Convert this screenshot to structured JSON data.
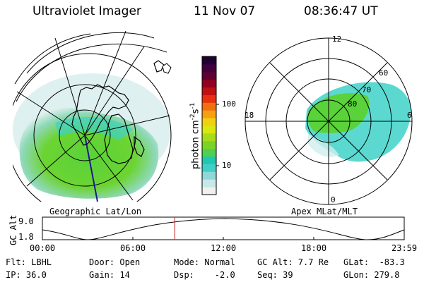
{
  "header": {
    "instrument": "Ultraviolet Imager",
    "date": "11 Nov 07",
    "time": "08:36:47 UT"
  },
  "left_map": {
    "caption": "Geographic Lat/Lon"
  },
  "right_map": {
    "caption": "Apex MLat/MLT",
    "mlt_labels": [
      "12",
      "18",
      "6",
      "0"
    ],
    "mlat_labels": [
      "60",
      "70",
      "80"
    ]
  },
  "colorbar": {
    "unit_label": "photon cm",
    "unit_exp1": "-2",
    "unit_mid": "s",
    "unit_exp2": "-1",
    "tick_labels": [
      "100",
      "10"
    ],
    "colors": [
      "#f0f0f0",
      "#c8e8e8",
      "#8ed8d8",
      "#40d0c8",
      "#20c8b0",
      "#50d050",
      "#7ad428",
      "#a8dc18",
      "#d8e810",
      "#f0d010",
      "#f4a010",
      "#f07010",
      "#e83010",
      "#c01010",
      "#900020",
      "#600030",
      "#400040",
      "#200030"
    ]
  },
  "altitude_panel": {
    "ylabel": "GC Alt",
    "y_ticks": [
      "9.0",
      "1.8"
    ],
    "x_ticks": [
      "00:00",
      "06:00",
      "12:00",
      "18:00",
      "23:59"
    ],
    "current_time_fraction": 0.3658
  },
  "info": {
    "flt": "Flt: LBHL",
    "ip": "IP: 36.0",
    "door": "Door: Open",
    "gain": "Gain: 14",
    "mode": "Mode: Normal",
    "dsp": "Dsp:    -2.0",
    "gcalt": "GC Alt: 7.7 Re",
    "seq": "Seq: 39",
    "glat": "GLat:  -83.3",
    "glon": "GLon: 279.8"
  },
  "colors": {
    "aurora_green": "#5ad23a",
    "aurora_cyan": "#3ed2c8",
    "time_marker": "#cc2222"
  }
}
